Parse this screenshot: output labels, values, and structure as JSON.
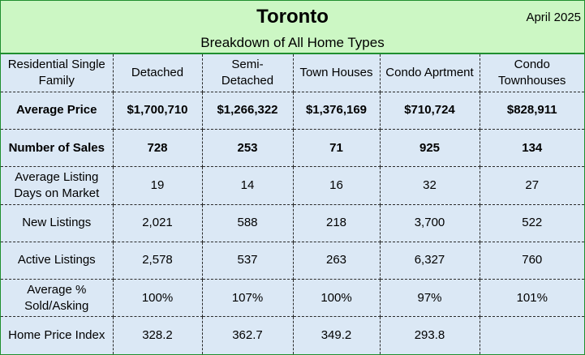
{
  "header": {
    "title": "Toronto",
    "date": "April 2025",
    "subtitle": "Breakdown of All Home Types"
  },
  "table": {
    "columns": [
      "Residential Single Family",
      "Detached",
      "Semi-\nDetached",
      "Town Houses",
      "Condo Aprtment",
      "Condo Townhouses"
    ],
    "rows": [
      {
        "label": "Average Price",
        "values": [
          "$1,700,710",
          "$1,266,322",
          "$1,376,169",
          "$710,724",
          "$828,911"
        ]
      },
      {
        "label": "Number of Sales",
        "values": [
          "728",
          "253",
          "71",
          "925",
          "134"
        ]
      },
      {
        "label": "Average Listing Days on Market",
        "values": [
          "19",
          "14",
          "16",
          "32",
          "27"
        ]
      },
      {
        "label": "New Listings",
        "values": [
          "2,021",
          "588",
          "218",
          "3,700",
          "522"
        ]
      },
      {
        "label": "Active Listings",
        "values": [
          "2,578",
          "537",
          "263",
          "6,327",
          "760"
        ]
      },
      {
        "label": "Average % Sold/Asking",
        "values": [
          "100%",
          "107%",
          "100%",
          "97%",
          "101%"
        ]
      },
      {
        "label": "Home Price Index",
        "values": [
          "328.2",
          "362.7",
          "349.2",
          "293.8",
          ""
        ]
      }
    ]
  }
}
